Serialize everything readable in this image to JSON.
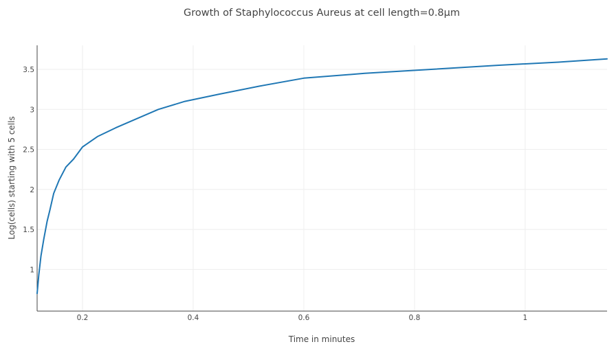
{
  "chart_data": {
    "type": "line",
    "title": "Growth of Staphylococcus Aureus at cell length=0.8µm",
    "xlabel": "Time in minutes",
    "ylabel": "Log(cells) starting with 5 cells",
    "xlim": [
      0.118,
      1.148
    ],
    "ylim": [
      0.48,
      3.8
    ],
    "x_ticks": [
      0.2,
      0.4,
      0.6,
      0.8,
      1
    ],
    "x_tick_labels": [
      "0.2",
      "0.4",
      "0.6",
      "0.8",
      "1"
    ],
    "y_ticks": [
      1,
      1.5,
      2,
      2.5,
      3,
      3.5
    ],
    "y_tick_labels": [
      "1",
      "1.5",
      "2",
      "2.5",
      "3",
      "3.5"
    ],
    "grid": true,
    "series": [
      {
        "color": "#1f77b4",
        "x": [
          0.118,
          0.121,
          0.125,
          0.13,
          0.136,
          0.141,
          0.148,
          0.158,
          0.17,
          0.184,
          0.2,
          0.227,
          0.26,
          0.297,
          0.337,
          0.385,
          0.447,
          0.52,
          0.6,
          0.71,
          0.83,
          0.95,
          1.06,
          1.148
        ],
        "y": [
          0.7,
          0.93,
          1.17,
          1.38,
          1.6,
          1.74,
          1.95,
          2.12,
          2.28,
          2.38,
          2.53,
          2.66,
          2.77,
          2.88,
          3.0,
          3.1,
          3.19,
          3.29,
          3.39,
          3.45,
          3.5,
          3.55,
          3.59,
          3.63
        ]
      }
    ]
  }
}
